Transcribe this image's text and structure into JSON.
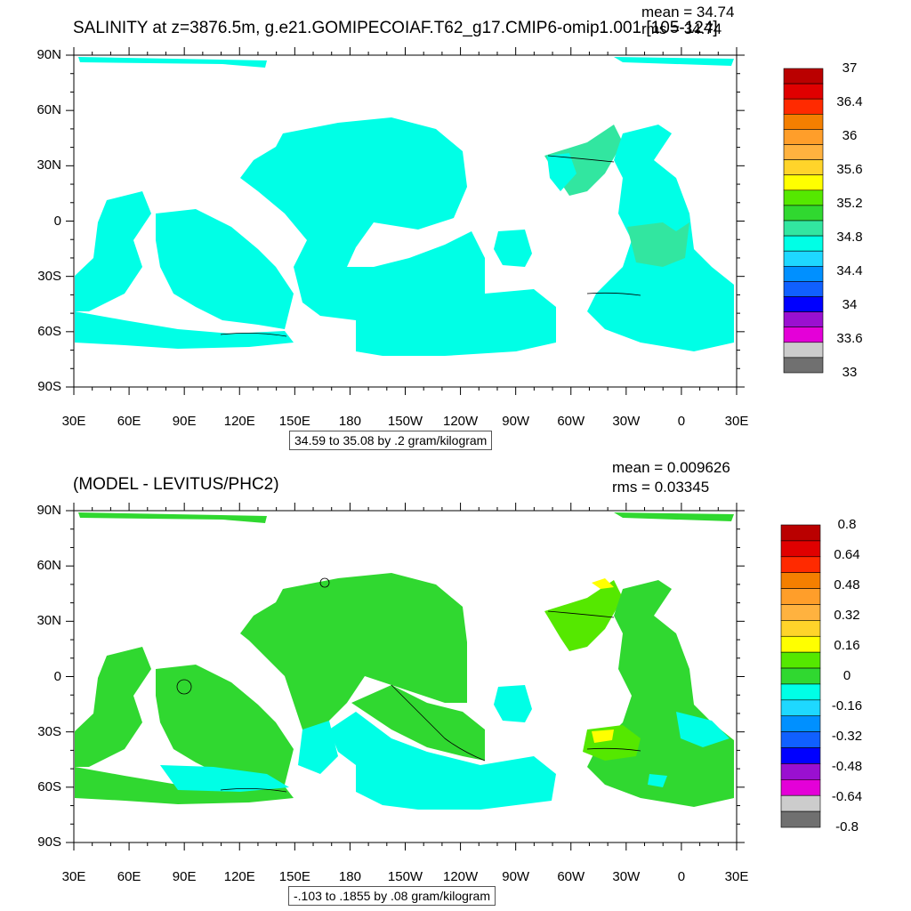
{
  "panel1": {
    "title": "SALINITY at z=3876.5m, g.e21.GOMIPECOIAF.T62_g17.CMIP6-omip1.001 [105-124]",
    "mean": "mean = 34.74",
    "rms": "rms = 34.74",
    "note": "34.59 to 35.08 by .2 gram/kilogram",
    "colorbar": {
      "colors": [
        "#ba0000",
        "#e00000",
        "#ff2a00",
        "#f47f00",
        "#ff9e2a",
        "#ffb23f",
        "#ffd42a",
        "#ffff00",
        "#55e800",
        "#30d830",
        "#32e6a0",
        "#00ffe6",
        "#1ed8ff",
        "#0090ff",
        "#1060ff",
        "#0000ff",
        "#9a10d0",
        "#e400d8",
        "#cccccc",
        "#707070"
      ],
      "labels": [
        "37",
        "36.4",
        "36",
        "35.6",
        "35.2",
        "34.8",
        "34.4",
        "34",
        "33.6",
        "33"
      ]
    }
  },
  "panel2": {
    "title": "(MODEL - LEVITUS/PHC2)",
    "mean": "mean = 0.009626",
    "rms": "rms = 0.03345",
    "note": "-.103 to .1855 by .08 gram/kilogram",
    "colorbar": {
      "colors": [
        "#ba0000",
        "#e00000",
        "#ff2a00",
        "#f47f00",
        "#ff9e2a",
        "#ffb23f",
        "#ffd42a",
        "#ffff00",
        "#55e800",
        "#30d830",
        "#00ffe6",
        "#1ed8ff",
        "#0090ff",
        "#1060ff",
        "#0000ff",
        "#9a10d0",
        "#e400d8",
        "#cccccc",
        "#707070"
      ],
      "labels": [
        "0.8",
        "0.64",
        "0.48",
        "0.32",
        "0.16",
        "0",
        "-0.16",
        "-0.32",
        "-0.48",
        "-0.64",
        "-0.8"
      ]
    }
  },
  "axes": {
    "lat_labels": [
      "90N",
      "60N",
      "30N",
      "0",
      "30S",
      "60S",
      "90S"
    ],
    "lon_labels": [
      "30E",
      "60E",
      "90E",
      "120E",
      "150E",
      "180",
      "150W",
      "120W",
      "90W",
      "60W",
      "30W",
      "0",
      "30E"
    ]
  },
  "map_colors": {
    "ocean_cyan": "#00ffe6",
    "ocean_teal": "#32e6a0",
    "ocean_green": "#30d830",
    "ocean_lime": "#55e800",
    "ocean_yellow": "#ffff00"
  }
}
